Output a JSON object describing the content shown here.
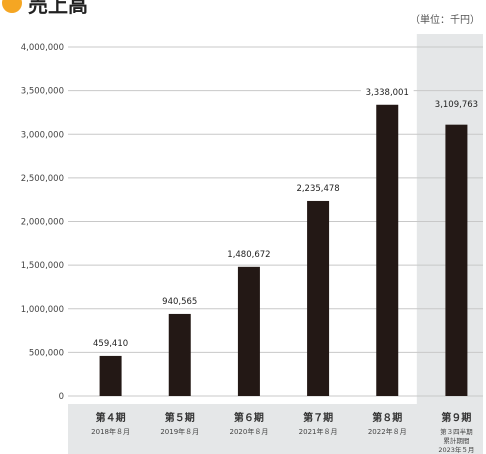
{
  "title": "売上高",
  "unit_label": "（単位：千円）",
  "colors": {
    "bar": "#231815",
    "highlight_bg": "#e5e7e8",
    "axis_band": "#e5e7e8",
    "title_dot": "#f5a623"
  },
  "chart_data": {
    "type": "bar",
    "title": "売上高",
    "unit": "（単位：千円）",
    "ylim": [
      0,
      4000000
    ],
    "y_ticks": [
      {
        "value": 0,
        "label": "0"
      },
      {
        "value": 500000,
        "label": "500,000"
      },
      {
        "value": 1000000,
        "label": "1,000,000"
      },
      {
        "value": 1500000,
        "label": "1,500,000"
      },
      {
        "value": 2000000,
        "label": "2,000,000"
      },
      {
        "value": 2500000,
        "label": "2,500,000"
      },
      {
        "value": 3000000,
        "label": "3,000,000"
      },
      {
        "value": 3500000,
        "label": "3,500,000"
      },
      {
        "value": 4000000,
        "label": "4,000,000"
      }
    ],
    "grid": true,
    "categories": [
      {
        "label": "第４期",
        "sub": [
          "2018年８月"
        ]
      },
      {
        "label": "第５期",
        "sub": [
          "2019年８月"
        ]
      },
      {
        "label": "第６期",
        "sub": [
          "2020年８月"
        ]
      },
      {
        "label": "第７期",
        "sub": [
          "2021年８月"
        ]
      },
      {
        "label": "第８期",
        "sub": [
          "2022年８月"
        ]
      },
      {
        "label": "第９期",
        "sub": [
          "第３四半期",
          "累計期間",
          "2023年５月"
        ],
        "highlight": true
      }
    ],
    "values": [
      459410,
      940565,
      1480672,
      2235478,
      3338001,
      3109763
    ],
    "value_labels": [
      "459,410",
      "940,565",
      "1,480,672",
      "2,235,478",
      "3,338,001",
      "3,109,763"
    ]
  }
}
